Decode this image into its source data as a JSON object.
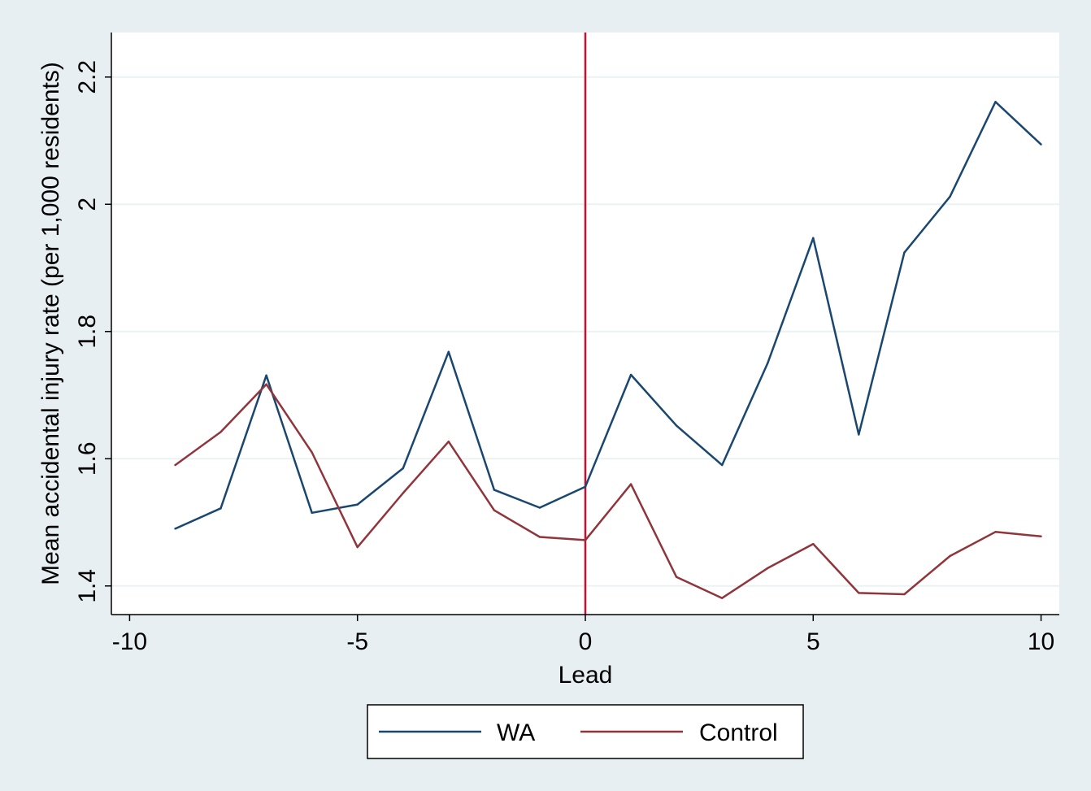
{
  "chart_data": {
    "type": "line",
    "xlabel": "Lead",
    "ylabel": "Mean accidental injury rate (per 1,000 residents)",
    "xlim": [
      -10.4,
      10.4
    ],
    "ylim": [
      1.355,
      2.27
    ],
    "xticks": [
      -10,
      -5,
      0,
      5,
      10
    ],
    "xtick_labels": [
      "-10",
      "-5",
      "0",
      "5",
      "10"
    ],
    "yticks": [
      1.4,
      1.6,
      1.8,
      2.0,
      2.2
    ],
    "ytick_labels": [
      "1.4",
      "1.6",
      "1.8",
      "2",
      "2.2"
    ],
    "grid": true,
    "vline": {
      "x": 0,
      "color": "#c8102e"
    },
    "x": [
      -9,
      -8,
      -7,
      -6,
      -5,
      -4,
      -3,
      -2,
      -1,
      0,
      1,
      2,
      3,
      4,
      5,
      6,
      7,
      8,
      9,
      10
    ],
    "series": [
      {
        "name": "WA",
        "color": "#1a476f",
        "values": [
          1.49,
          1.522,
          1.731,
          1.515,
          1.528,
          1.585,
          1.768,
          1.551,
          1.523,
          1.556,
          1.732,
          1.652,
          1.59,
          1.75,
          1.947,
          1.638,
          1.924,
          2.012,
          2.161,
          2.094
        ]
      },
      {
        "name": "Control",
        "color": "#90353b",
        "values": [
          1.59,
          1.642,
          1.717,
          1.61,
          1.461,
          1.546,
          1.627,
          1.519,
          1.477,
          1.472,
          1.56,
          1.414,
          1.381,
          1.428,
          1.466,
          1.389,
          1.387,
          1.447,
          1.485,
          1.478
        ]
      }
    ],
    "legend_position": "bottom"
  }
}
